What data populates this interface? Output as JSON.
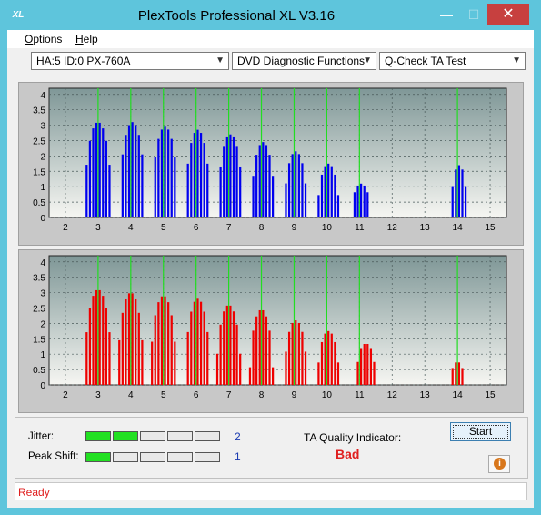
{
  "window": {
    "title": "PlexTools Professional XL V3.16",
    "logo": "XL",
    "controls": {
      "minimize": "—",
      "maximize": "☐",
      "close": "✕"
    }
  },
  "menu": {
    "items": [
      "Options",
      "Help"
    ]
  },
  "toolbar": {
    "drive": "HA:5 ID:0  PX-760A",
    "function": "DVD Diagnostic Functions",
    "test": "Q-Check TA Test"
  },
  "charts": {
    "y_ticks": [
      "4",
      "3.5",
      "3",
      "2.5",
      "2",
      "1.5",
      "1",
      "0.5",
      "0"
    ],
    "x_ticks": [
      "2",
      "3",
      "4",
      "5",
      "6",
      "7",
      "8",
      "9",
      "10",
      "11",
      "12",
      "13",
      "14",
      "15"
    ]
  },
  "chart_data": [
    {
      "type": "bar",
      "name": "top",
      "color": "#0000ee",
      "xlim": [
        1.5,
        15.5
      ],
      "ylim": [
        0,
        4.2
      ],
      "marker_lines": [
        3,
        4,
        5,
        6,
        7,
        8,
        9,
        10,
        11,
        14
      ],
      "peaks": [
        {
          "center": 3.0,
          "height": 3.1,
          "width": 0.42
        },
        {
          "center": 4.05,
          "height": 3.1,
          "width": 0.4
        },
        {
          "center": 5.05,
          "height": 2.95,
          "width": 0.4
        },
        {
          "center": 6.05,
          "height": 2.85,
          "width": 0.38
        },
        {
          "center": 7.05,
          "height": 2.7,
          "width": 0.38
        },
        {
          "center": 8.05,
          "height": 2.45,
          "width": 0.36
        },
        {
          "center": 9.05,
          "height": 2.15,
          "width": 0.35
        },
        {
          "center": 10.05,
          "height": 1.75,
          "width": 0.33
        },
        {
          "center": 11.05,
          "height": 1.1,
          "width": 0.3
        },
        {
          "center": 14.05,
          "height": 1.7,
          "width": 0.25
        }
      ]
    },
    {
      "type": "bar",
      "name": "bottom",
      "color": "#ee0000",
      "xlim": [
        1.5,
        15.5
      ],
      "ylim": [
        0,
        4.2
      ],
      "marker_lines": [
        3,
        4,
        5,
        6,
        7,
        8,
        9,
        10,
        11,
        14
      ],
      "peaks": [
        {
          "center": 3.0,
          "height": 3.1,
          "width": 0.42
        },
        {
          "center": 4.0,
          "height": 3.0,
          "width": 0.4
        },
        {
          "center": 5.0,
          "height": 2.9,
          "width": 0.4
        },
        {
          "center": 6.05,
          "height": 2.8,
          "width": 0.38
        },
        {
          "center": 7.0,
          "height": 2.6,
          "width": 0.38
        },
        {
          "center": 8.0,
          "height": 2.45,
          "width": 0.36
        },
        {
          "center": 9.05,
          "height": 2.1,
          "width": 0.35
        },
        {
          "center": 10.05,
          "height": 1.75,
          "width": 0.33
        },
        {
          "center": 11.2,
          "height": 1.35,
          "width": 0.3
        },
        {
          "center": 14.0,
          "height": 0.75,
          "width": 0.22
        }
      ]
    }
  ],
  "meters": {
    "jitter": {
      "label": "Jitter:",
      "value": "2",
      "level": 2,
      "segments": 5
    },
    "peak_shift": {
      "label": "Peak Shift:",
      "value": "1",
      "level": 1,
      "segments": 5
    }
  },
  "quality": {
    "label": "TA Quality Indicator:",
    "value": "Bad",
    "value_color": "#e02020"
  },
  "buttons": {
    "start": "Start",
    "info_icon": "i"
  },
  "status": {
    "text": "Ready"
  },
  "colors": {
    "titlebar": "#5ec5dc",
    "marker_line": "#22dd22",
    "meter_on": "#22e022"
  }
}
